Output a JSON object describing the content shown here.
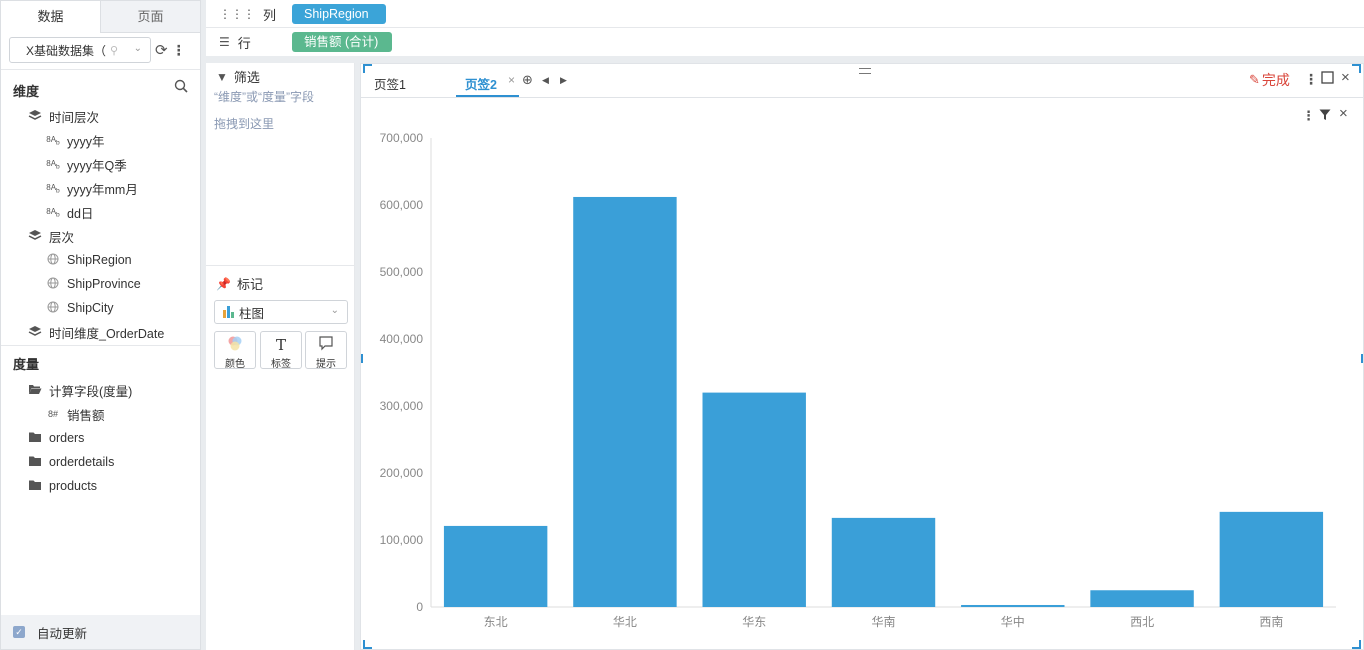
{
  "left_panel": {
    "tabs": [
      "数据",
      "页面"
    ],
    "dataset": {
      "name": "X基础数据集（",
      "search_icon": "search-icon"
    },
    "dimensions": {
      "title": "维度",
      "groups": [
        {
          "label": "时间层次",
          "icon": "layers-icon",
          "children": [
            "yyyy年",
            "yyyy年Q季",
            "yyyy年mm月",
            "dd日"
          ]
        },
        {
          "label": "层次",
          "icon": "layers-icon",
          "children": [
            "ShipRegion",
            "ShipProvince",
            "ShipCity"
          ]
        },
        {
          "label": "时间维度_OrderDate",
          "icon": "layers-icon",
          "children": []
        }
      ]
    },
    "measures": {
      "title": "度量",
      "folders": [
        {
          "label": "计算字段(度量)",
          "children": [
            "销售额"
          ]
        },
        {
          "label": "orders",
          "children": []
        },
        {
          "label": "orderdetails",
          "children": []
        },
        {
          "label": "products",
          "children": []
        }
      ]
    },
    "auto_update_label": "自动更新",
    "auto_update_checked": true
  },
  "shelves": {
    "columns": {
      "label": "列",
      "pill": "ShipRegion"
    },
    "rows": {
      "label": "行",
      "pill": "销售额 (合计)"
    }
  },
  "filter_panel": {
    "title": "筛选",
    "hint_line1": "“维度”或“度量”字段",
    "hint_line2": "拖拽到这里"
  },
  "marks_panel": {
    "title": "标记",
    "chart_type": "柱图",
    "buttons": [
      {
        "label": "颜色",
        "icon": "color-palette-icon"
      },
      {
        "label": "标签",
        "icon": "text-label-icon"
      },
      {
        "label": "提示",
        "icon": "tooltip-icon"
      }
    ]
  },
  "canvas": {
    "tabs": [
      "页签1",
      "页签2"
    ],
    "active_tab": 1,
    "done_label": "完成"
  },
  "colors": {
    "bar": "#3a9fd8",
    "dimension_pill": "#3ba4d8",
    "measure_pill": "#5bb88f",
    "accent": "#2e90d1",
    "done": "#d9453a"
  },
  "chart_data": {
    "type": "bar",
    "categories": [
      "东北",
      "华北",
      "华东",
      "华南",
      "华中",
      "西北",
      "西南"
    ],
    "values": [
      121000,
      612000,
      320000,
      133000,
      3000,
      25000,
      142000
    ],
    "yticks": [
      "0",
      "100,000",
      "200,000",
      "300,000",
      "400,000",
      "500,000",
      "600,000",
      "700,000"
    ],
    "ylim": [
      0,
      700000
    ],
    "grid": false,
    "legend": "none"
  }
}
